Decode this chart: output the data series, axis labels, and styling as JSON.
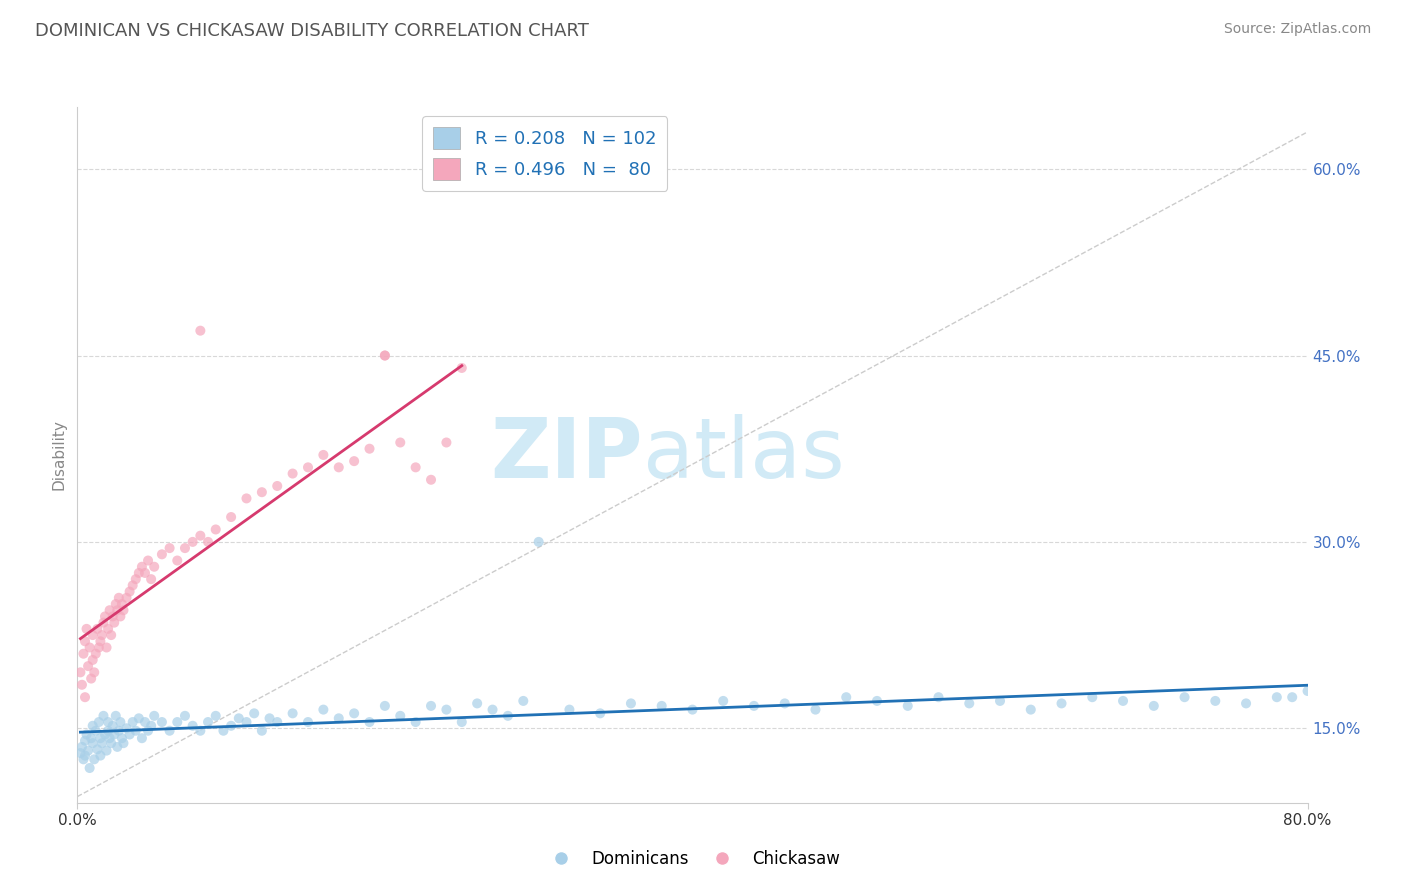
{
  "title": "DOMINICAN VS CHICKASAW DISABILITY CORRELATION CHART",
  "source": "Source: ZipAtlas.com",
  "ylabel": "Disability",
  "xlim": [
    0.0,
    0.8
  ],
  "ylim": [
    0.09,
    0.65
  ],
  "watermark_zip": "ZIP",
  "watermark_atlas": "atlas",
  "legend_blue_r": "R = 0.208",
  "legend_blue_n": "N = 102",
  "legend_pink_r": "R = 0.496",
  "legend_pink_n": "N =  80",
  "blue_color": "#a8cfe8",
  "pink_color": "#f4a7bc",
  "blue_line_color": "#2171b5",
  "pink_line_color": "#d63a6e",
  "marker_size": 52,
  "blue_scatter_alpha": 0.7,
  "pink_scatter_alpha": 0.7,
  "ytick_vals": [
    0.15,
    0.3,
    0.45,
    0.6
  ],
  "ytick_labels": [
    "15.0%",
    "30.0%",
    "45.0%",
    "60.0%"
  ],
  "ref_line_color": "#cccccc",
  "grid_color": "#d8d8d8",
  "title_color": "#555555",
  "source_color": "#888888",
  "legend_label_color": "#2171b5"
}
